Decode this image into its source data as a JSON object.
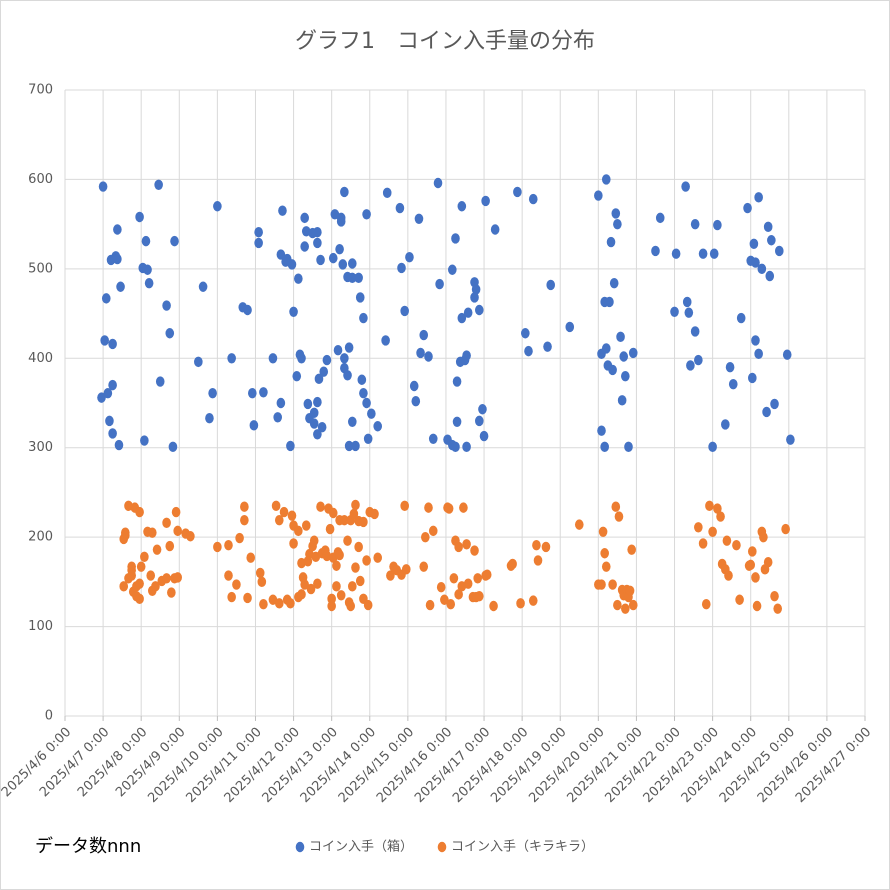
{
  "chart_data": {
    "type": "scatter",
    "title": "グラフ1　コイン入手量の分布",
    "note": "データ数nnn",
    "xlim": [
      "2025/4/6 0:00",
      "2025/4/27 0:00"
    ],
    "xticks": [
      "2025/4/6 0:00",
      "2025/4/7 0:00",
      "2025/4/8 0:00",
      "2025/4/9 0:00",
      "2025/4/10 0:00",
      "2025/4/11 0:00",
      "2025/4/12 0:00",
      "2025/4/13 0:00",
      "2025/4/14 0:00",
      "2025/4/15 0:00",
      "2025/4/16 0:00",
      "2025/4/17 0:00",
      "2025/4/18 0:00",
      "2025/4/19 0:00",
      "2025/4/20 0:00",
      "2025/4/21 0:00",
      "2025/4/22 0:00",
      "2025/4/23 0:00",
      "2025/4/24 0:00",
      "2025/4/25 0:00",
      "2025/4/26 0:00",
      "2025/4/27 0:00"
    ],
    "ylim": [
      0,
      700
    ],
    "yticks": [
      0,
      100,
      200,
      300,
      400,
      500,
      600,
      700
    ],
    "grid": true,
    "legend": "bottom",
    "series": [
      {
        "name": "コイン入手（箱）",
        "color": "#4472c4",
        "x": [
          "2025/4/7 0:00",
          "2025/4/6 23:00",
          "2025/4/7 1:00",
          "2025/4/7 2:00",
          "2025/4/7 3:00",
          "2025/4/7 4:00",
          "2025/4/7 5:00",
          "2025/4/7 6:00",
          "2025/4/7 6:00",
          "2025/4/7 6:00",
          "2025/4/7 8:00",
          "2025/4/7 9:00",
          "2025/4/7 9:00",
          "2025/4/7 10:00",
          "2025/4/7 11:00",
          "2025/4/7 23:00",
          "2025/4/8 1:00",
          "2025/4/8 3:00",
          "2025/4/8 4:00",
          "2025/4/8 5:00",
          "2025/4/8 2:00",
          "2025/4/8 11:00",
          "2025/4/8 12:00",
          "2025/4/8 16:00",
          "2025/4/8 18:00",
          "2025/4/8 20:00",
          "2025/4/8 21:00",
          "2025/4/9 12:00",
          "2025/4/9 15:00",
          "2025/4/9 19:00",
          "2025/4/9 21:00",
          "2025/4/10 0:00",
          "2025/4/10 9:00",
          "2025/4/10 16:00",
          "2025/4/10 19:00",
          "2025/4/10 22:00",
          "2025/4/10 23:00",
          "2025/4/11 2:00",
          "2025/4/11 2:00",
          "2025/4/11 5:00",
          "2025/4/11 11:00",
          "2025/4/11 14:00",
          "2025/4/11 16:00",
          "2025/4/11 16:00",
          "2025/4/11 17:00",
          "2025/4/11 19:00",
          "2025/4/11 20:00",
          "2025/4/11 22:00",
          "2025/4/11 23:00",
          "2025/4/12 0:00",
          "2025/4/12 2:00",
          "2025/4/12 3:00",
          "2025/4/12 4:00",
          "2025/4/12 5:00",
          "2025/4/12 7:00",
          "2025/4/12 7:00",
          "2025/4/12 8:00",
          "2025/4/12 9:00",
          "2025/4/12 10:00",
          "2025/4/12 12:00",
          "2025/4/12 13:00",
          "2025/4/12 13:00",
          "2025/4/12 15:00",
          "2025/4/12 15:00",
          "2025/4/12 15:00",
          "2025/4/12 15:00",
          "2025/4/12 16:00",
          "2025/4/12 17:00",
          "2025/4/12 18:00",
          "2025/4/12 19:00",
          "2025/4/12 21:00",
          "2025/4/13 1:00",
          "2025/4/13 2:00",
          "2025/4/13 4:00",
          "2025/4/13 5:00",
          "2025/4/13 6:00",
          "2025/4/13 6:00",
          "2025/4/13 7:00",
          "2025/4/13 8:00",
          "2025/4/13 8:00",
          "2025/4/13 8:00",
          "2025/4/13 10:00",
          "2025/4/13 10:00",
          "2025/4/13 11:00",
          "2025/4/13 11:00",
          "2025/4/13 13:00",
          "2025/4/13 13:00",
          "2025/4/13 13:00",
          "2025/4/13 15:00",
          "2025/4/13 17:00",
          "2025/4/13 18:00",
          "2025/4/13 19:00",
          "2025/4/13 20:00",
          "2025/4/13 20:00",
          "2025/4/13 22:00",
          "2025/4/13 22:00",
          "2025/4/13 23:00",
          "2025/4/14 1:00",
          "2025/4/14 5:00",
          "2025/4/14 10:00",
          "2025/4/14 11:00",
          "2025/4/14 19:00",
          "2025/4/14 20:00",
          "2025/4/14 22:00",
          "2025/4/15 1:00",
          "2025/4/15 4:00",
          "2025/4/15 5:00",
          "2025/4/15 7:00",
          "2025/4/15 8:00",
          "2025/4/15 10:00",
          "2025/4/15 13:00",
          "2025/4/15 16:00",
          "2025/4/15 19:00",
          "2025/4/15 20:00",
          "2025/4/16 1:00",
          "2025/4/16 4:00",
          "2025/4/16 4:00",
          "2025/4/16 6:00",
          "2025/4/16 6:00",
          "2025/4/16 7:00",
          "2025/4/16 7:00",
          "2025/4/16 9:00",
          "2025/4/16 10:00",
          "2025/4/16 10:00",
          "2025/4/16 12:00",
          "2025/4/16 13:00",
          "2025/4/16 13:00",
          "2025/4/16 14:00",
          "2025/4/16 18:00",
          "2025/4/16 18:00",
          "2025/4/16 19:00",
          "2025/4/16 21:00",
          "2025/4/16 21:00",
          "2025/4/16 23:00",
          "2025/4/17 0:00",
          "2025/4/17 1:00",
          "2025/4/17 7:00",
          "2025/4/17 21:00",
          "2025/4/18 2:00",
          "2025/4/18 4:00",
          "2025/4/18 7:00",
          "2025/4/18 16:00",
          "2025/4/18 18:00",
          "2025/4/19 6:00",
          "2025/4/20 0:00",
          "2025/4/20 2:00",
          "2025/4/20 2:00",
          "2025/4/20 4:00",
          "2025/4/20 4:00",
          "2025/4/20 5:00",
          "2025/4/20 5:00",
          "2025/4/20 6:00",
          "2025/4/20 7:00",
          "2025/4/20 8:00",
          "2025/4/20 9:00",
          "2025/4/20 10:00",
          "2025/4/20 11:00",
          "2025/4/20 12:00",
          "2025/4/20 14:00",
          "2025/4/20 15:00",
          "2025/4/20 16:00",
          "2025/4/20 17:00",
          "2025/4/20 19:00",
          "2025/4/20 22:00",
          "2025/4/21 12:00",
          "2025/4/21 15:00",
          "2025/4/22 0:00",
          "2025/4/22 1:00",
          "2025/4/22 7:00",
          "2025/4/22 8:00",
          "2025/4/22 9:00",
          "2025/4/22 10:00",
          "2025/4/22 13:00",
          "2025/4/22 13:00",
          "2025/4/22 15:00",
          "2025/4/22 18:00",
          "2025/4/23 0:00",
          "2025/4/23 1:00",
          "2025/4/23 3:00",
          "2025/4/23 8:00",
          "2025/4/23 11:00",
          "2025/4/23 13:00",
          "2025/4/23 18:00",
          "2025/4/23 22:00",
          "2025/4/24 0:00",
          "2025/4/24 1:00",
          "2025/4/24 2:00",
          "2025/4/24 3:00",
          "2025/4/24 3:00",
          "2025/4/24 5:00",
          "2025/4/24 5:00",
          "2025/4/24 7:00",
          "2025/4/24 10:00",
          "2025/4/24 11:00",
          "2025/4/24 12:00",
          "2025/4/24 13:00",
          "2025/4/24 15:00",
          "2025/4/24 18:00",
          "2025/4/24 23:00",
          "2025/4/25 1:00"
        ],
        "values": [
          592,
          356,
          420,
          467,
          361,
          330,
          510,
          370,
          316,
          416,
          514,
          544,
          511,
          303,
          480,
          558,
          501,
          531,
          499,
          484,
          308,
          594,
          374,
          459,
          428,
          301,
          531,
          396,
          480,
          333,
          361,
          570,
          400,
          457,
          454,
          361,
          325,
          529,
          541,
          362,
          400,
          334,
          516,
          350,
          565,
          508,
          511,
          302,
          505,
          452,
          380,
          489,
          404,
          400,
          525,
          557,
          542,
          349,
          333,
          540,
          339,
          327,
          529,
          541,
          351,
          315,
          377,
          510,
          323,
          385,
          398,
          512,
          561,
          409,
          522,
          553,
          557,
          505,
          400,
          586,
          389,
          491,
          381,
          412,
          302,
          506,
          490,
          329,
          302,
          490,
          468,
          376,
          445,
          361,
          350,
          561,
          310,
          338,
          324,
          420,
          585,
          568,
          501,
          453,
          513,
          369,
          352,
          556,
          406,
          426,
          402,
          310,
          596,
          483,
          309,
          303,
          499,
          534,
          301,
          329,
          374,
          396,
          445,
          570,
          398,
          301,
          403,
          451,
          485,
          468,
          477,
          330,
          454,
          343,
          313,
          576,
          544,
          586,
          428,
          408,
          578,
          413,
          482,
          435,
          582,
          319,
          405,
          301,
          463,
          600,
          411,
          392,
          463,
          530,
          387,
          484,
          562,
          550,
          424,
          353,
          402,
          380,
          301,
          406,
          520,
          557,
          452,
          517,
          592,
          463,
          451,
          392,
          430,
          550,
          398,
          517,
          301,
          517,
          549,
          326,
          390,
          371,
          445,
          568,
          509,
          378,
          528,
          420,
          507,
          405,
          580,
          500,
          340,
          547,
          492,
          532,
          349,
          520,
          404,
          309
        ]
      },
      {
        "name": "コイン入手（キラキラ）",
        "color": "#ed7d31",
        "x": [
          "2025/4/7 13:00",
          "2025/4/7 13:00",
          "2025/4/7 14:00",
          "2025/4/7 14:00",
          "2025/4/7 16:00",
          "2025/4/7 16:00",
          "2025/4/7 18:00",
          "2025/4/7 18:00",
          "2025/4/7 18:00",
          "2025/4/7 19:00",
          "2025/4/7 20:00",
          "2025/4/7 21:00",
          "2025/4/7 21:00",
          "2025/4/7 23:00",
          "2025/4/7 23:00",
          "2025/4/7 23:00",
          "2025/4/8 0:00",
          "2025/4/8 2:00",
          "2025/4/8 4:00",
          "2025/4/8 6:00",
          "2025/4/8 7:00",
          "2025/4/8 7:00",
          "2025/4/8 9:00",
          "2025/4/8 10:00",
          "2025/4/8 13:00",
          "2025/4/8 16:00",
          "2025/4/8 16:00",
          "2025/4/8 18:00",
          "2025/4/8 19:00",
          "2025/4/8 21:00",
          "2025/4/8 22:00",
          "2025/4/8 23:00",
          "2025/4/8 23:00",
          "2025/4/9 4:00",
          "2025/4/9 7:00",
          "2025/4/10 0:00",
          "2025/4/10 7:00",
          "2025/4/10 7:00",
          "2025/4/10 9:00",
          "2025/4/10 12:00",
          "2025/4/10 14:00",
          "2025/4/10 17:00",
          "2025/4/10 17:00",
          "2025/4/10 19:00",
          "2025/4/10 21:00",
          "2025/4/11 3:00",
          "2025/4/11 4:00",
          "2025/4/11 5:00",
          "2025/4/11 11:00",
          "2025/4/11 13:00",
          "2025/4/11 15:00",
          "2025/4/11 15:00",
          "2025/4/11 18:00",
          "2025/4/11 20:00",
          "2025/4/11 22:00",
          "2025/4/11 23:00",
          "2025/4/12 0:00",
          "2025/4/12 0:00",
          "2025/4/12 3:00",
          "2025/4/12 3:00",
          "2025/4/12 5:00",
          "2025/4/12 5:00",
          "2025/4/12 6:00",
          "2025/4/12 7:00",
          "2025/4/12 8:00",
          "2025/4/12 9:00",
          "2025/4/12 10:00",
          "2025/4/12 11:00",
          "2025/4/12 12:00",
          "2025/4/12 13:00",
          "2025/4/12 14:00",
          "2025/4/12 15:00",
          "2025/4/12 17:00",
          "2025/4/12 18:00",
          "2025/4/12 20:00",
          "2025/4/12 21:00",
          "2025/4/12 22:00",
          "2025/4/12 23:00",
          "2025/4/13 0:00",
          "2025/4/13 0:00",
          "2025/4/13 1:00",
          "2025/4/13 1:00",
          "2025/4/13 3:00",
          "2025/4/13 3:00",
          "2025/4/13 4:00",
          "2025/4/13 5:00",
          "2025/4/13 5:00",
          "2025/4/13 6:00",
          "2025/4/13 8:00",
          "2025/4/13 10:00",
          "2025/4/13 11:00",
          "2025/4/13 12:00",
          "2025/4/13 12:00",
          "2025/4/13 13:00",
          "2025/4/13 14:00",
          "2025/4/13 15:00",
          "2025/4/13 15:00",
          "2025/4/13 17:00",
          "2025/4/13 17:00",
          "2025/4/13 18:00",
          "2025/4/13 20:00",
          "2025/4/13 20:00",
          "2025/4/13 22:00",
          "2025/4/13 23:00",
          "2025/4/14 0:00",
          "2025/4/14 3:00",
          "2025/4/14 5:00",
          "2025/4/14 13:00",
          "2025/4/14 15:00",
          "2025/4/14 17:00",
          "2025/4/14 20:00",
          "2025/4/14 22:00",
          "2025/4/14 23:00",
          "2025/4/15 10:00",
          "2025/4/15 11:00",
          "2025/4/15 13:00",
          "2025/4/15 14:00",
          "2025/4/15 16:00",
          "2025/4/15 21:00",
          "2025/4/15 23:00",
          "2025/4/16 1:00",
          "2025/4/16 2:00",
          "2025/4/16 3:00",
          "2025/4/16 5:00",
          "2025/4/16 6:00",
          "2025/4/16 8:00",
          "2025/4/16 8:00",
          "2025/4/16 10:00",
          "2025/4/16 11:00",
          "2025/4/16 13:00",
          "2025/4/16 14:00",
          "2025/4/16 17:00",
          "2025/4/16 18:00",
          "2025/4/16 19:00",
          "2025/4/16 20:00",
          "2025/4/16 21:00",
          "2025/4/17 1:00",
          "2025/4/17 2:00",
          "2025/4/17 6:00",
          "2025/4/17 17:00",
          "2025/4/17 18:00",
          "2025/4/17 23:00",
          "2025/4/18 7:00",
          "2025/4/18 9:00",
          "2025/4/18 10:00",
          "2025/4/18 15:00",
          "2025/4/19 12:00",
          "2025/4/20 0:00",
          "2025/4/20 2:00",
          "2025/4/20 3:00",
          "2025/4/20 4:00",
          "2025/4/20 5:00",
          "2025/4/20 9:00",
          "2025/4/20 11:00",
          "2025/4/20 12:00",
          "2025/4/20 13:00",
          "2025/4/20 15:00",
          "2025/4/20 16:00",
          "2025/4/20 17:00",
          "2025/4/20 18:00",
          "2025/4/20 19:00",
          "2025/4/20 20:00",
          "2025/4/20 21:00",
          "2025/4/20 22:00",
          "2025/4/22 15:00",
          "2025/4/22 18:00",
          "2025/4/22 20:00",
          "2025/4/22 22:00",
          "2025/4/23 0:00",
          "2025/4/23 3:00",
          "2025/4/23 5:00",
          "2025/4/23 6:00",
          "2025/4/23 8:00",
          "2025/4/23 9:00",
          "2025/4/23 10:00",
          "2025/4/23 15:00",
          "2025/4/23 17:00",
          "2025/4/23 23:00",
          "2025/4/24 0:00",
          "2025/4/24 1:00",
          "2025/4/24 3:00",
          "2025/4/24 4:00",
          "2025/4/24 7:00",
          "2025/4/24 8:00",
          "2025/4/24 9:00",
          "2025/4/24 11:00",
          "2025/4/24 15:00",
          "2025/4/24 17:00",
          "2025/4/24 22:00"
        ],
        "values": [
          145,
          198,
          202,
          205,
          235,
          154,
          167,
          163,
          157,
          139,
          233,
          145,
          134,
          131,
          148,
          228,
          167,
          178,
          206,
          157,
          140,
          205,
          145,
          186,
          151,
          154,
          216,
          190,
          138,
          154,
          228,
          155,
          207,
          204,
          201,
          189,
          157,
          191,
          133,
          147,
          199,
          234,
          219,
          132,
          177,
          160,
          150,
          125,
          130,
          235,
          219,
          126,
          228,
          130,
          126,
          224,
          193,
          213,
          133,
          207,
          171,
          136,
          155,
          147,
          213,
          173,
          181,
          142,
          190,
          196,
          178,
          148,
          234,
          182,
          185,
          179,
          232,
          209,
          131,
          123,
          227,
          177,
          168,
          145,
          183,
          219,
          180,
          135,
          219,
          196,
          127,
          123,
          219,
          145,
          226,
          236,
          166,
          218,
          189,
          151,
          131,
          217,
          174,
          124,
          228,
          226,
          177,
          157,
          167,
          163,
          158,
          235,
          164,
          167,
          200,
          233,
          124,
          207,
          144,
          130,
          233,
          232,
          125,
          154,
          196,
          189,
          136,
          145,
          233,
          192,
          148,
          133,
          185,
          133,
          154,
          134,
          157,
          158,
          123,
          168,
          170,
          126,
          129,
          191,
          174,
          189,
          214,
          147,
          147,
          206,
          182,
          167,
          147,
          234,
          124,
          223,
          141,
          135,
          120,
          141,
          133,
          140,
          186,
          124,
          211,
          193,
          125,
          235,
          206,
          232,
          223,
          170,
          164,
          196,
          157,
          191,
          130,
          168,
          169,
          184,
          155,
          123,
          206,
          200,
          164,
          172,
          134,
          120,
          209
        ]
      }
    ]
  }
}
